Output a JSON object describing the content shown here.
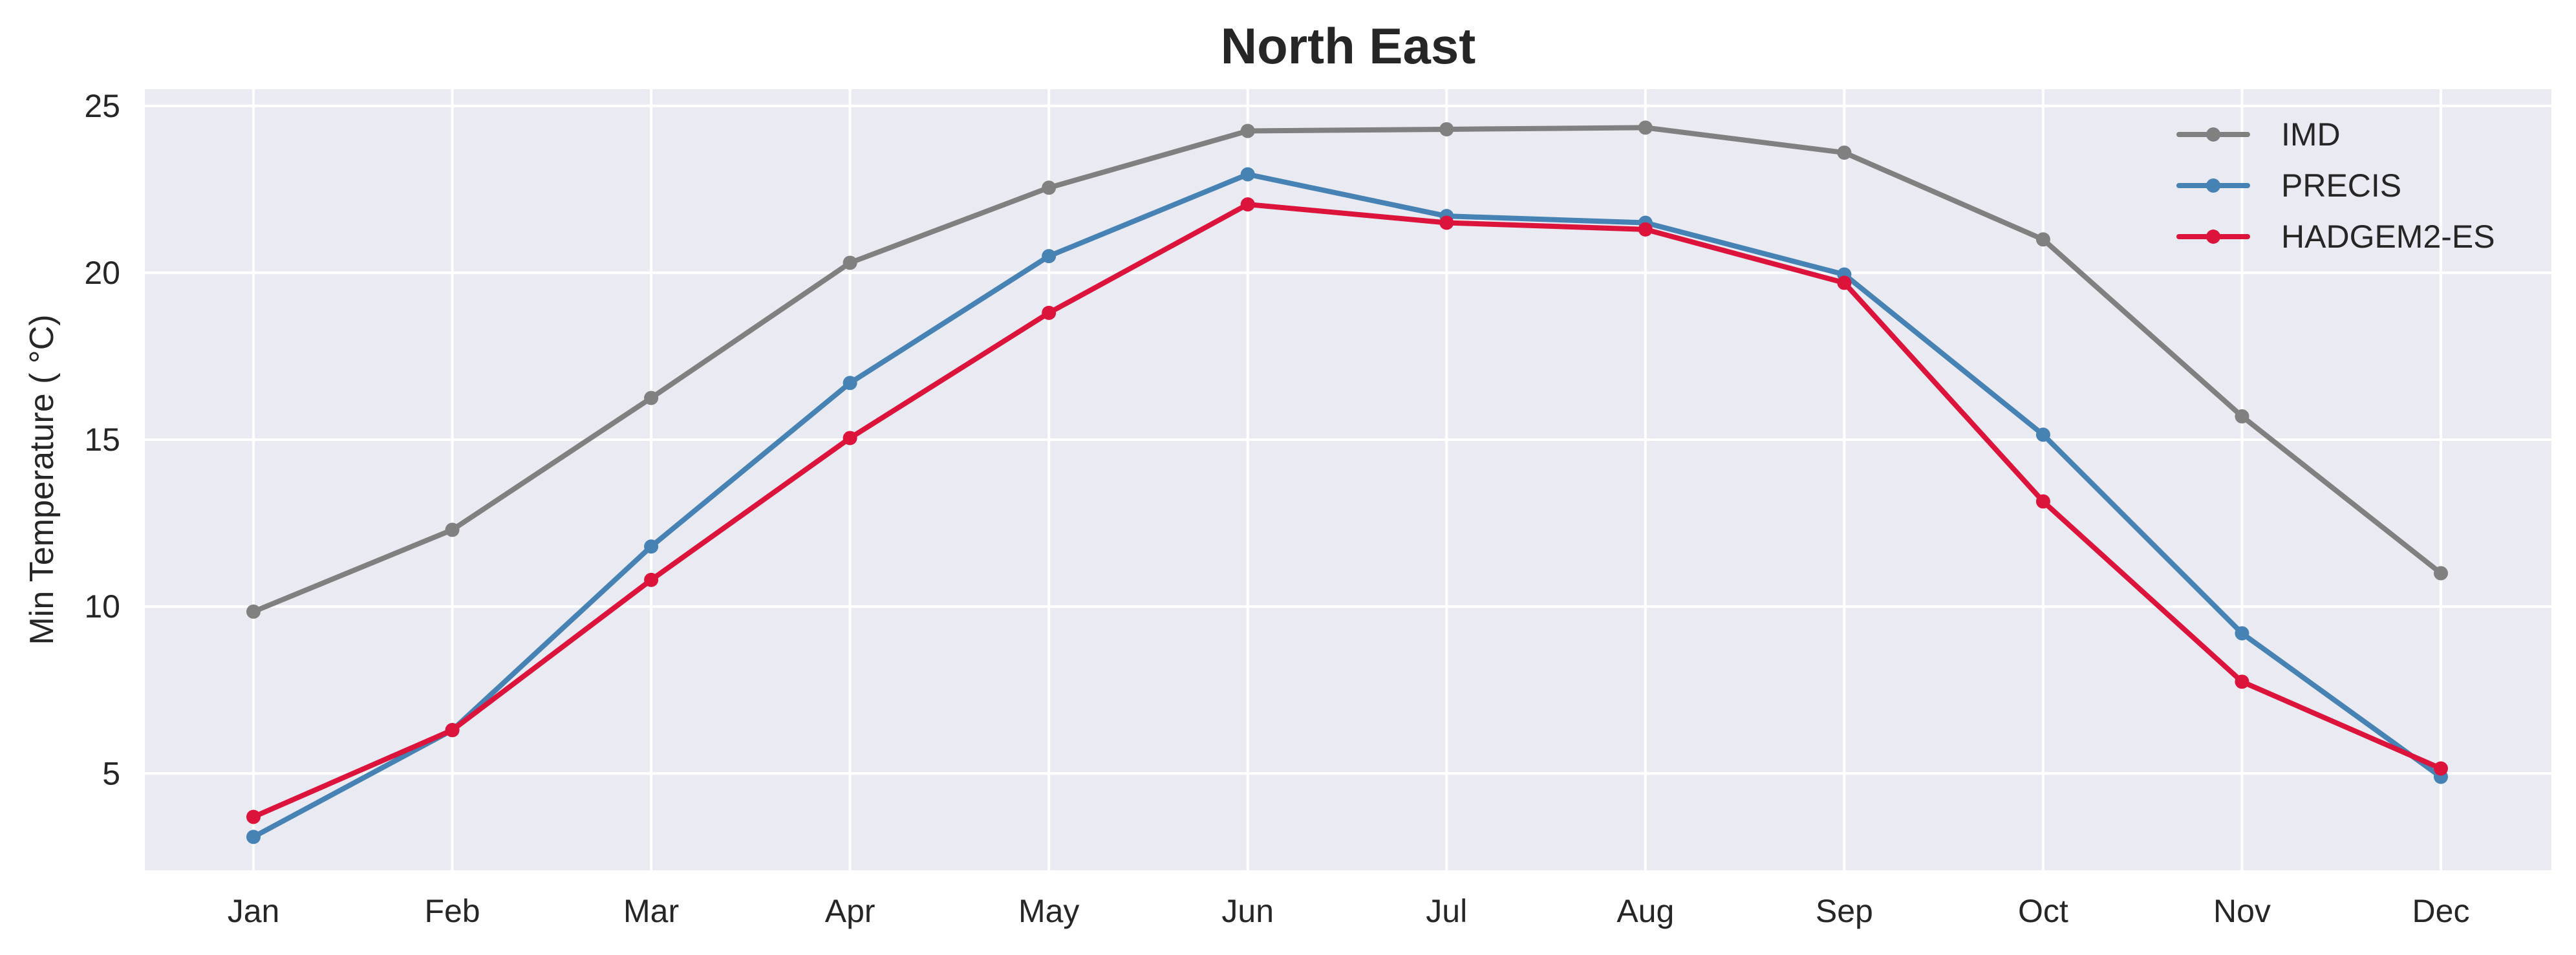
{
  "chart_data": {
    "type": "line",
    "title": "North East",
    "xlabel": "",
    "ylabel": "Min Temperature ($^\\circ$C)",
    "ylabel_display": "Min Temperature ( °C)",
    "categories": [
      "Jan",
      "Feb",
      "Mar",
      "Apr",
      "May",
      "Jun",
      "Jul",
      "Aug",
      "Sep",
      "Oct",
      "Nov",
      "Dec"
    ],
    "ylim": [
      2.1,
      25.5
    ],
    "yticks": [
      5,
      10,
      15,
      20,
      25
    ],
    "grid": true,
    "legend_position": "top-right",
    "background": "#eaeaf2",
    "series": [
      {
        "name": "IMD",
        "color": "#808080",
        "values": [
          9.85,
          12.3,
          16.25,
          20.3,
          22.55,
          24.25,
          24.3,
          24.35,
          23.6,
          21.0,
          15.7,
          11.0
        ]
      },
      {
        "name": "PRECIS",
        "color": "#4682b4",
        "values": [
          3.1,
          6.3,
          11.8,
          16.7,
          20.5,
          22.95,
          21.7,
          21.5,
          19.95,
          15.15,
          9.2,
          4.9
        ]
      },
      {
        "name": "HADGEM2-ES",
        "color": "#dc143c",
        "values": [
          3.7,
          6.3,
          10.8,
          15.05,
          18.8,
          22.05,
          21.5,
          21.3,
          19.7,
          13.15,
          7.75,
          5.15
        ]
      }
    ]
  }
}
